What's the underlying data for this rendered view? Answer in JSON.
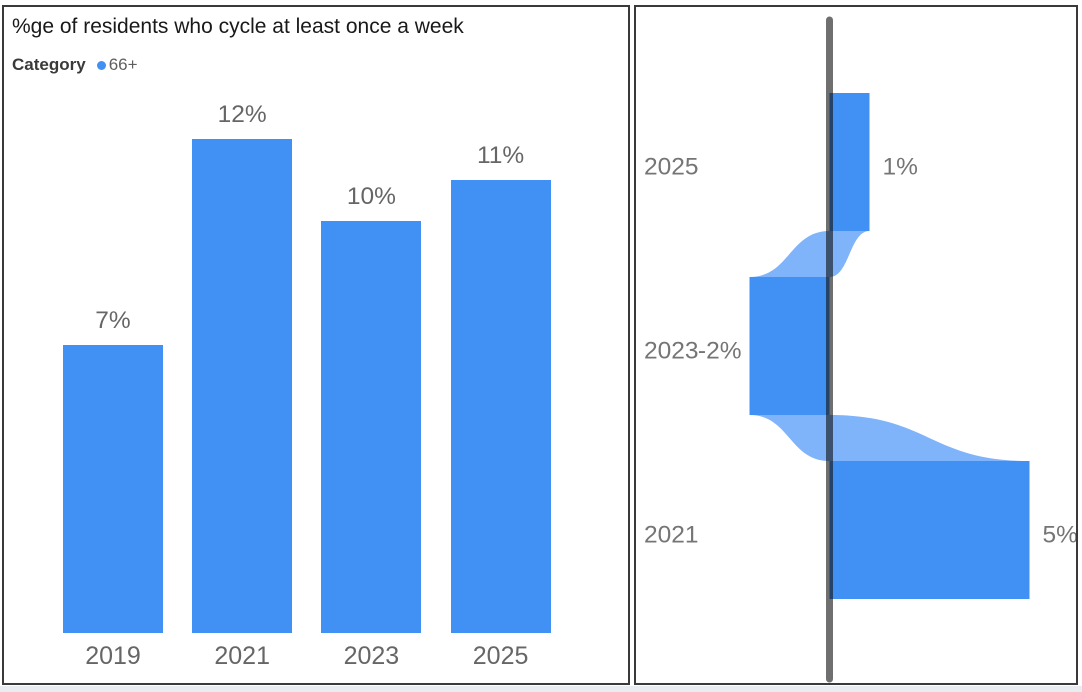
{
  "page": {
    "background": "#FFFFFF",
    "footer_strip_color": "#E9EDF2",
    "panel_border_color": "#3A3A3A"
  },
  "chart_data": [
    {
      "type": "bar",
      "title": "%ge of residents who cycle at least once a week",
      "legend": {
        "title": "Category",
        "series": "66+",
        "dot_color": "#4191F5",
        "position": "top-left"
      },
      "categories": [
        "2019",
        "2021",
        "2023",
        "2025"
      ],
      "values": [
        7,
        12,
        10,
        11
      ],
      "labels": [
        "7%",
        "12%",
        "10%",
        "11%"
      ],
      "value_suffix": "%",
      "bar_color": "#4191F5",
      "label_color": "#666666",
      "grid": "off",
      "y_axis": "hidden"
    },
    {
      "type": "flow",
      "subtype": "year-over-year-change-ribbon",
      "items": [
        {
          "category": "2025",
          "value": 1,
          "label": "1%"
        },
        {
          "category": "2023",
          "value": -2,
          "label": "-2%"
        },
        {
          "category": "2021",
          "value": 5,
          "label": "5%"
        }
      ],
      "block_color": "#4191F5",
      "ribbon_color": "#7FB3FA",
      "axis_color": "#0F0F0F",
      "axis_opacity": 0.6,
      "text_color": "#757575"
    }
  ]
}
